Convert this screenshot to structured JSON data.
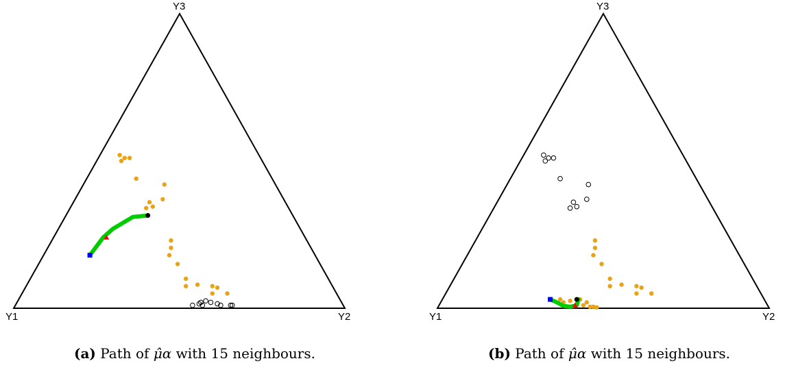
{
  "chart_data": [
    {
      "type": "scatter",
      "subtype": "ternary",
      "vertex_labels": [
        "Y1",
        "Y2",
        "Y3"
      ],
      "colors": {
        "observed": "#e8a317",
        "neighbour": "#000000",
        "path": "#00cc00",
        "start": "#0000ff",
        "end": "#000000",
        "mid": "#ff0000"
      },
      "caption": {
        "tag": "(a)",
        "pre": "Path of ",
        "symbol": "μ̂α",
        "post": " with 15 neighbours."
      },
      "orange_points": [
        [
          0.645,
          0.05
        ],
        [
          0.6,
          0.05
        ],
        [
          0.615,
          0.07
        ],
        [
          0.6,
          0.075
        ],
        [
          0.555,
          0.08
        ],
        [
          0.52,
          0.075
        ],
        [
          0.52,
          0.1
        ],
        [
          0.475,
          0.23
        ],
        [
          0.495,
          0.15
        ],
        [
          0.47,
          0.18
        ],
        [
          0.475,
          0.205
        ],
        [
          0.45,
          0.37
        ],
        [
          0.455,
          0.42
        ],
        [
          0.42,
          0.345
        ],
        [
          0.4,
          0.34
        ],
        [
          0.41,
          0.36
        ],
        [
          0.37,
          0.44
        ],
        [
          0.35,
          0.51
        ],
        [
          0.32,
          0.52
        ],
        [
          0.325,
          0.5
        ],
        [
          0.335,
          0.51
        ]
      ],
      "hollow_points": [
        [
          0.57,
          0.01
        ],
        [
          0.56,
          0.015
        ],
        [
          0.565,
          0.02
        ],
        [
          0.58,
          0.025
        ],
        [
          0.595,
          0.02
        ],
        [
          0.615,
          0.015
        ],
        [
          0.625,
          0.01
        ],
        [
          0.655,
          0.01
        ],
        [
          0.66,
          0.01
        ],
        [
          0.54,
          0.01
        ]
      ],
      "path": [
        [
          0.23,
          0.18
        ],
        [
          0.27,
          0.24
        ],
        [
          0.3,
          0.27
        ],
        [
          0.36,
          0.31
        ],
        [
          0.405,
          0.315
        ]
      ],
      "start_point": [
        0.23,
        0.18
      ],
      "mid_point": [
        0.28,
        0.24
      ],
      "end_point": [
        0.405,
        0.315
      ]
    },
    {
      "type": "scatter",
      "subtype": "ternary",
      "vertex_labels": [
        "Y1",
        "Y2",
        "Y3"
      ],
      "colors": {
        "observed": "#e8a317",
        "neighbour": "#000000",
        "path": "#00cc00",
        "start": "#0000ff",
        "end": "#000000",
        "mid": "#ff0000"
      },
      "caption": {
        "tag": "(b)",
        "pre": "Path of ",
        "symbol": "μ̂α",
        "post": " with 15 neighbours."
      },
      "orange_points": [
        [
          0.645,
          0.05
        ],
        [
          0.6,
          0.05
        ],
        [
          0.615,
          0.07
        ],
        [
          0.6,
          0.075
        ],
        [
          0.555,
          0.08
        ],
        [
          0.52,
          0.075
        ],
        [
          0.52,
          0.1
        ],
        [
          0.475,
          0.23
        ],
        [
          0.495,
          0.15
        ],
        [
          0.47,
          0.18
        ],
        [
          0.475,
          0.205
        ],
        [
          0.44,
          0.01
        ],
        [
          0.42,
          0.015
        ],
        [
          0.38,
          0.02
        ],
        [
          0.4,
          0.025
        ],
        [
          0.45,
          0.02
        ],
        [
          0.43,
          0.03
        ],
        [
          0.37,
          0.03
        ],
        [
          0.46,
          0.005
        ],
        [
          0.47,
          0.005
        ],
        [
          0.48,
          0.003
        ]
      ],
      "hollow_points": [
        [
          0.45,
          0.37
        ],
        [
          0.455,
          0.42
        ],
        [
          0.42,
          0.345
        ],
        [
          0.4,
          0.34
        ],
        [
          0.41,
          0.36
        ],
        [
          0.37,
          0.44
        ],
        [
          0.35,
          0.51
        ],
        [
          0.32,
          0.52
        ],
        [
          0.325,
          0.5
        ],
        [
          0.335,
          0.51
        ]
      ],
      "path": [
        [
          0.34,
          0.03
        ],
        [
          0.36,
          0.02
        ],
        [
          0.38,
          0.008
        ],
        [
          0.4,
          0.005
        ],
        [
          0.42,
          0.01
        ],
        [
          0.425,
          0.03
        ]
      ],
      "start_point": [
        0.34,
        0.03
      ],
      "mid_point": [
        0.415,
        0.01
      ],
      "end_point": [
        0.42,
        0.03
      ]
    }
  ]
}
